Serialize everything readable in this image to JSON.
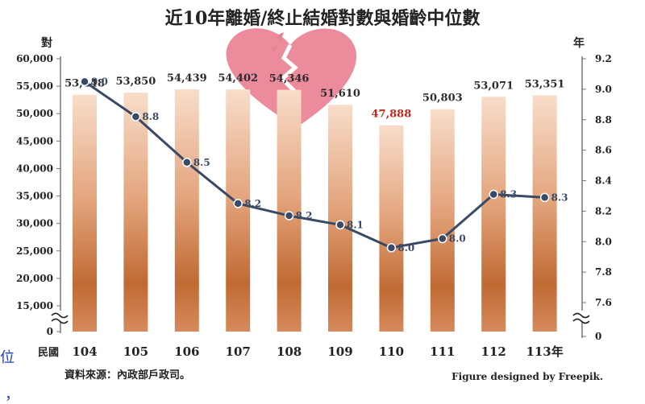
{
  "chart_data": {
    "type": "bar",
    "title": "近10年離婚/終止結婚對數與婚齡中位數",
    "left_axis_title": "對",
    "right_axis_title": "年",
    "x_axis_title": "民國",
    "source": "資料來源：內政部戶政司。",
    "credit": "Figure designed by Freepik.",
    "categories": [
      "104",
      "105",
      "106",
      "107",
      "108",
      "109",
      "110",
      "111",
      "112",
      "113年"
    ],
    "series": [
      {
        "type": "bar",
        "axis": "left",
        "values": [
          53448,
          53850,
          54439,
          54402,
          54346,
          51610,
          47888,
          50803,
          53071,
          53351
        ],
        "labels": [
          "53,448",
          "53,850",
          "54,439",
          "54,402",
          "54,346",
          "51,610",
          "47,888",
          "50,803",
          "53,071",
          "53,351"
        ],
        "highlight_index": 6,
        "color_top": "#f6d7c2",
        "color_bottom": "#bf6a2e"
      },
      {
        "type": "line",
        "axis": "right",
        "values": [
          9.05,
          8.82,
          8.52,
          8.25,
          8.17,
          8.11,
          7.96,
          8.02,
          8.31,
          8.29
        ],
        "labels": [
          "9.0",
          "8.8",
          "8.5",
          "8.2",
          "8.2",
          "8.1",
          "8.0",
          "8.0",
          "8.3",
          "8.3"
        ],
        "color": "#3a4a66"
      }
    ],
    "left_axis": {
      "ticks": [
        0,
        15000,
        20000,
        25000,
        30000,
        35000,
        40000,
        45000,
        50000,
        55000,
        60000
      ],
      "tick_labels": [
        "0",
        "15,000",
        "20,000",
        "25,000",
        "30,000",
        "35,000",
        "40,000",
        "45,000",
        "50,000",
        "55,000",
        "60,000"
      ],
      "axis_break": true
    },
    "right_axis": {
      "ticks": [
        0,
        7.6,
        7.8,
        8.0,
        8.2,
        8.4,
        8.6,
        8.8,
        9.0,
        9.2
      ],
      "tick_labels": [
        "0",
        "7.6",
        "7.8",
        "8.0",
        "8.2",
        "8.4",
        "8.6",
        "8.8",
        "9.0",
        "9.2"
      ],
      "axis_break": true
    },
    "highlight_color": "#c0281a",
    "label_color": "#2b2b2b",
    "line_label_color": "#3a4a66",
    "heart_color": "#e98194",
    "gridlines": false,
    "legend": "none"
  },
  "page": {
    "edge_chars": [
      "位",
      "，"
    ]
  }
}
